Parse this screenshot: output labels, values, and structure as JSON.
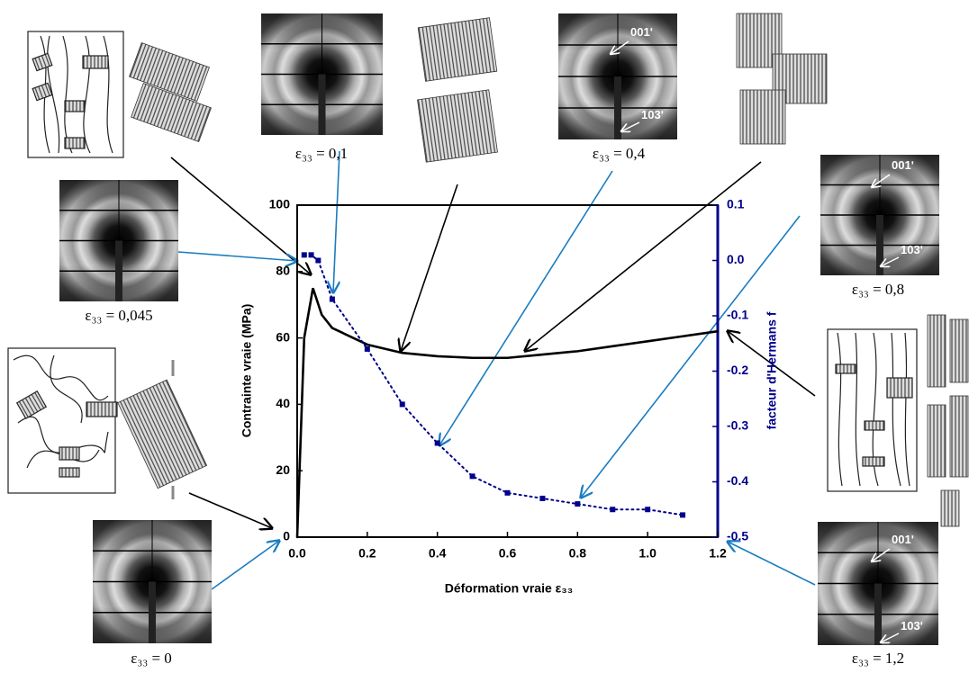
{
  "chart_data": {
    "type": "line",
    "x_label": "Déformation vraie ε₃₃",
    "y_label": "Contrainte vraie (MPa)",
    "y2_label": "facteur d'Hermans f",
    "xlim": [
      0,
      1.2
    ],
    "ylim": [
      0,
      100
    ],
    "y2lim": [
      -0.5,
      0.1
    ],
    "xticks": [
      {
        "value": 0,
        "label": "0.0"
      },
      0.2,
      0.4,
      0.6,
      0.8,
      {
        "value": 1,
        "label": "1.0"
      },
      1.2
    ],
    "yticks": [
      0,
      20,
      40,
      60,
      80,
      100
    ],
    "y2ticks": [
      0.1,
      {
        "value": 0,
        "label": "0.0"
      },
      -0.1,
      -0.2,
      -0.3,
      -0.4,
      -0.5
    ],
    "series": [
      {
        "color": "#000000",
        "line_style": "solid",
        "marker": "none",
        "x": [
          0,
          0.02,
          0.045,
          0.07,
          0.1,
          0.2,
          0.3,
          0.4,
          0.5,
          0.6,
          0.7,
          0.8,
          0.9,
          1.0,
          1.1,
          1.2
        ],
        "values": [
          0,
          60,
          75,
          67,
          63,
          58,
          55.5,
          54.5,
          54,
          54,
          55,
          56,
          57.5,
          59,
          60.5,
          62
        ]
      },
      {
        "color": "#00008b",
        "line_style": "dotted",
        "marker": "square",
        "axis": "y2",
        "x": [
          0.02,
          0.04,
          0.06,
          0.1,
          0.2,
          0.3,
          0.4,
          0.5,
          0.6,
          0.7,
          0.8,
          0.9,
          1.0,
          1.1
        ],
        "values": [
          0.01,
          0.01,
          0,
          -0.07,
          -0.16,
          -0.26,
          -0.33,
          -0.39,
          -0.42,
          -0.43,
          -0.44,
          -0.45,
          -0.45,
          -0.46
        ]
      }
    ],
    "annotations": [
      {
        "caption": "ε₃₃ = 0,1",
        "labels": []
      },
      {
        "caption": "ε₃₃ = 0,4",
        "labels": [
          "001ʹ",
          "103ʹ"
        ]
      },
      {
        "caption": "ε₃₃ = 0,045",
        "labels": []
      },
      {
        "caption": "ε₃₃ = 0,8",
        "labels": [
          "001ʹ",
          "103ʹ"
        ]
      },
      {
        "caption": "ε₃₃ = 0",
        "labels": []
      },
      {
        "caption": "ε₃₃ = 1,2",
        "labels": [
          "001ʹ",
          "103ʹ"
        ]
      }
    ]
  }
}
